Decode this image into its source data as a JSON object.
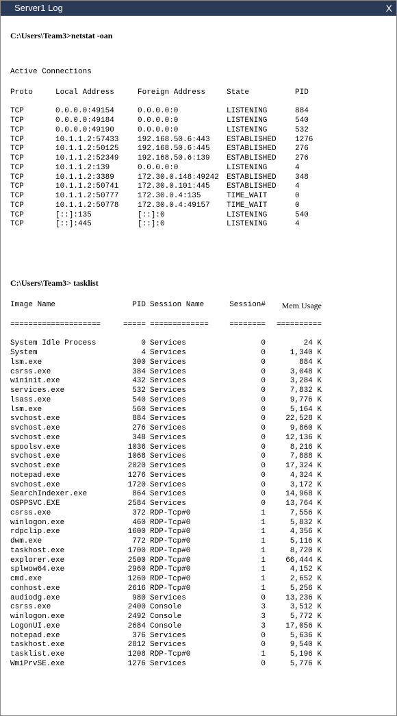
{
  "window": {
    "title": "Server1 Log",
    "close_label": "X"
  },
  "netstat": {
    "prompt": "C:\\Users\\Team3>netstat -oan",
    "section_title": "Active Connections",
    "headers": {
      "proto": "Proto",
      "local": "Local Address",
      "foreign": "Foreign Address",
      "state": "State",
      "pid": "PID"
    },
    "rows": [
      {
        "proto": "TCP",
        "local": "0.0.0.0:49154",
        "foreign": "0.0.0.0:0",
        "state": "LISTENING",
        "pid": "884"
      },
      {
        "proto": "TCP",
        "local": "0.0.0.0:49184",
        "foreign": "0.0.0.0:0",
        "state": "LISTENING",
        "pid": "540"
      },
      {
        "proto": "TCP",
        "local": "0.0.0.0:49190",
        "foreign": "0.0.0.0:0",
        "state": "LISTENING",
        "pid": "532"
      },
      {
        "proto": "TCP",
        "local": "10.1.1.2:57433",
        "foreign": "192.168.50.6:443",
        "state": "ESTABLISHED",
        "pid": "1276"
      },
      {
        "proto": "TCP",
        "local": "10.1.1.2:50125",
        "foreign": "192.168.50.6:445",
        "state": "ESTABLISHED",
        "pid": "276"
      },
      {
        "proto": "TCP",
        "local": "10.1.1.2:52349",
        "foreign": "192.168.50.6:139",
        "state": "ESTABLISHED",
        "pid": "276"
      },
      {
        "proto": "TCP",
        "local": "10.1.1.2:139",
        "foreign": "0.0.0.0:0",
        "state": "LISTENING",
        "pid": "4"
      },
      {
        "proto": "TCP",
        "local": "10.1.1.2:3389",
        "foreign": "172.30.0.148:49242",
        "state": "ESTABLISHED",
        "pid": "348"
      },
      {
        "proto": "TCP",
        "local": "10.1.1.2:50741",
        "foreign": "172.30.0.101:445",
        "state": "ESTABLISHED",
        "pid": "4"
      },
      {
        "proto": "TCP",
        "local": "10.1.1.2:50777",
        "foreign": "172.30.0.4:135",
        "state": "TIME_WAIT",
        "pid": "0"
      },
      {
        "proto": "TCP",
        "local": "10.1.1.2:50778",
        "foreign": "172.30.0.4:49157",
        "state": "TIME_WAIT",
        "pid": "0"
      },
      {
        "proto": "TCP",
        "local": "[::]:135",
        "foreign": "[::]:0",
        "state": "LISTENING",
        "pid": "540"
      },
      {
        "proto": "TCP",
        "local": "[::]:445",
        "foreign": "[::]:0",
        "state": "LISTENING",
        "pid": "4"
      }
    ]
  },
  "tasklist": {
    "prompt": "C:\\Users\\Team3> tasklist",
    "headers": {
      "image": "Image Name",
      "pid": "PID",
      "session_name": "Session Name",
      "session_num": "Session#",
      "mem": "Mem Usage"
    },
    "underline": {
      "image": "====================",
      "pid": "=====",
      "session_name": "=============",
      "session_num": "========",
      "mem": "=========="
    },
    "rows": [
      {
        "image": "System Idle Process",
        "pid": "0",
        "session": "Services",
        "snum": "0",
        "mem": "24 K"
      },
      {
        "image": "System",
        "pid": "4",
        "session": "Services",
        "snum": "0",
        "mem": "1,340 K"
      },
      {
        "image": "lsm.exe",
        "pid": "300",
        "session": "Services",
        "snum": "0",
        "mem": "884 K"
      },
      {
        "image": "csrss.exe",
        "pid": "384",
        "session": "Services",
        "snum": "0",
        "mem": "3,048 K"
      },
      {
        "image": "wininit.exe",
        "pid": "432",
        "session": "Services",
        "snum": "0",
        "mem": "3,284 K"
      },
      {
        "image": "services.exe",
        "pid": "532",
        "session": "Services",
        "snum": "0",
        "mem": "7,832 K"
      },
      {
        "image": "lsass.exe",
        "pid": "540",
        "session": "Services",
        "snum": "0",
        "mem": "9,776 K"
      },
      {
        "image": "lsm.exe",
        "pid": "560",
        "session": "Services",
        "snum": "0",
        "mem": "5,164 K"
      },
      {
        "image": "svchost.exe",
        "pid": "884",
        "session": "Services",
        "snum": "0",
        "mem": "22,528 K"
      },
      {
        "image": "svchost.exe",
        "pid": "276",
        "session": "Services",
        "snum": "0",
        "mem": "9,860 K"
      },
      {
        "image": "svchost.exe",
        "pid": "348",
        "session": "Services",
        "snum": "0",
        "mem": "12,136 K"
      },
      {
        "image": "spoolsv.exe",
        "pid": "1036",
        "session": "Services",
        "snum": "0",
        "mem": "8,216 K"
      },
      {
        "image": "svchost.exe",
        "pid": "1068",
        "session": "Services",
        "snum": "0",
        "mem": "7,888 K"
      },
      {
        "image": "svchost.exe",
        "pid": "2020",
        "session": "Services",
        "snum": "0",
        "mem": "17,324 K"
      },
      {
        "image": "notepad.exe",
        "pid": "1276",
        "session": "Services",
        "snum": "0",
        "mem": "4,324 K"
      },
      {
        "image": "svchost.exe",
        "pid": "1720",
        "session": "Services",
        "snum": "0",
        "mem": "3,172 K"
      },
      {
        "image": "SearchIndexer.exe",
        "pid": "864",
        "session": "Services",
        "snum": "0",
        "mem": "14,968 K"
      },
      {
        "image": "OSPPSVC.EXE",
        "pid": "2584",
        "session": "Services",
        "snum": "0",
        "mem": "13,764 K"
      },
      {
        "image": "csrss.exe",
        "pid": "372",
        "session": "RDP-Tcp#0",
        "snum": "1",
        "mem": "7,556 K"
      },
      {
        "image": "winlogon.exe",
        "pid": "460",
        "session": "RDP-Tcp#0",
        "snum": "1",
        "mem": "5,832 K"
      },
      {
        "image": "rdpclip.exe",
        "pid": "1600",
        "session": "RDP-Tcp#0",
        "snum": "1",
        "mem": "4,356 K"
      },
      {
        "image": "dwm.exe",
        "pid": "772",
        "session": "RDP-Tcp#0",
        "snum": "1",
        "mem": "5,116 K"
      },
      {
        "image": "taskhost.exe",
        "pid": "1700",
        "session": "RDP-Tcp#0",
        "snum": "1",
        "mem": "8,720 K"
      },
      {
        "image": "explorer.exe",
        "pid": "2500",
        "session": "RDP-Tcp#0",
        "snum": "1",
        "mem": "66,444 K"
      },
      {
        "image": "splwow64.exe",
        "pid": "2960",
        "session": "RDP-Tcp#0",
        "snum": "1",
        "mem": "4,152 K"
      },
      {
        "image": "cmd.exe",
        "pid": "1260",
        "session": "RDP-Tcp#0",
        "snum": "1",
        "mem": "2,652 K"
      },
      {
        "image": "conhost.exe",
        "pid": "2616",
        "session": "RDP-Tcp#0",
        "snum": "1",
        "mem": "5,256 K"
      },
      {
        "image": "audiodg.exe",
        "pid": "980",
        "session": "Services",
        "snum": "0",
        "mem": "13,236 K"
      },
      {
        "image": "csrss.exe",
        "pid": "2400",
        "session": "Console",
        "snum": "3",
        "mem": "3,512 K"
      },
      {
        "image": "winlogon.exe",
        "pid": "2492",
        "session": "Console",
        "snum": "3",
        "mem": "5,772 K"
      },
      {
        "image": "LogonUI.exe",
        "pid": "2684",
        "session": "Console",
        "snum": "3",
        "mem": "17,056 K"
      },
      {
        "image": "notepad.exe",
        "pid": "376",
        "session": "Services",
        "snum": "0",
        "mem": "5,636 K"
      },
      {
        "image": "taskhost.exe",
        "pid": "2812",
        "session": "Services",
        "snum": "0",
        "mem": "9,540 K"
      },
      {
        "image": "tasklist.exe",
        "pid": "1208",
        "session": "RDP-Tcp#0",
        "snum": "1",
        "mem": "5,196 K"
      },
      {
        "image": "WmiPrvSE.exe",
        "pid": "1276",
        "session": "Services",
        "snum": "0",
        "mem": "5,776 K"
      }
    ]
  },
  "colors": {
    "titlebar_bg": "#2b3a57",
    "titlebar_fg": "#ffffff",
    "body_bg": "#ffffff",
    "body_fg": "#000000",
    "border": "#888888"
  }
}
